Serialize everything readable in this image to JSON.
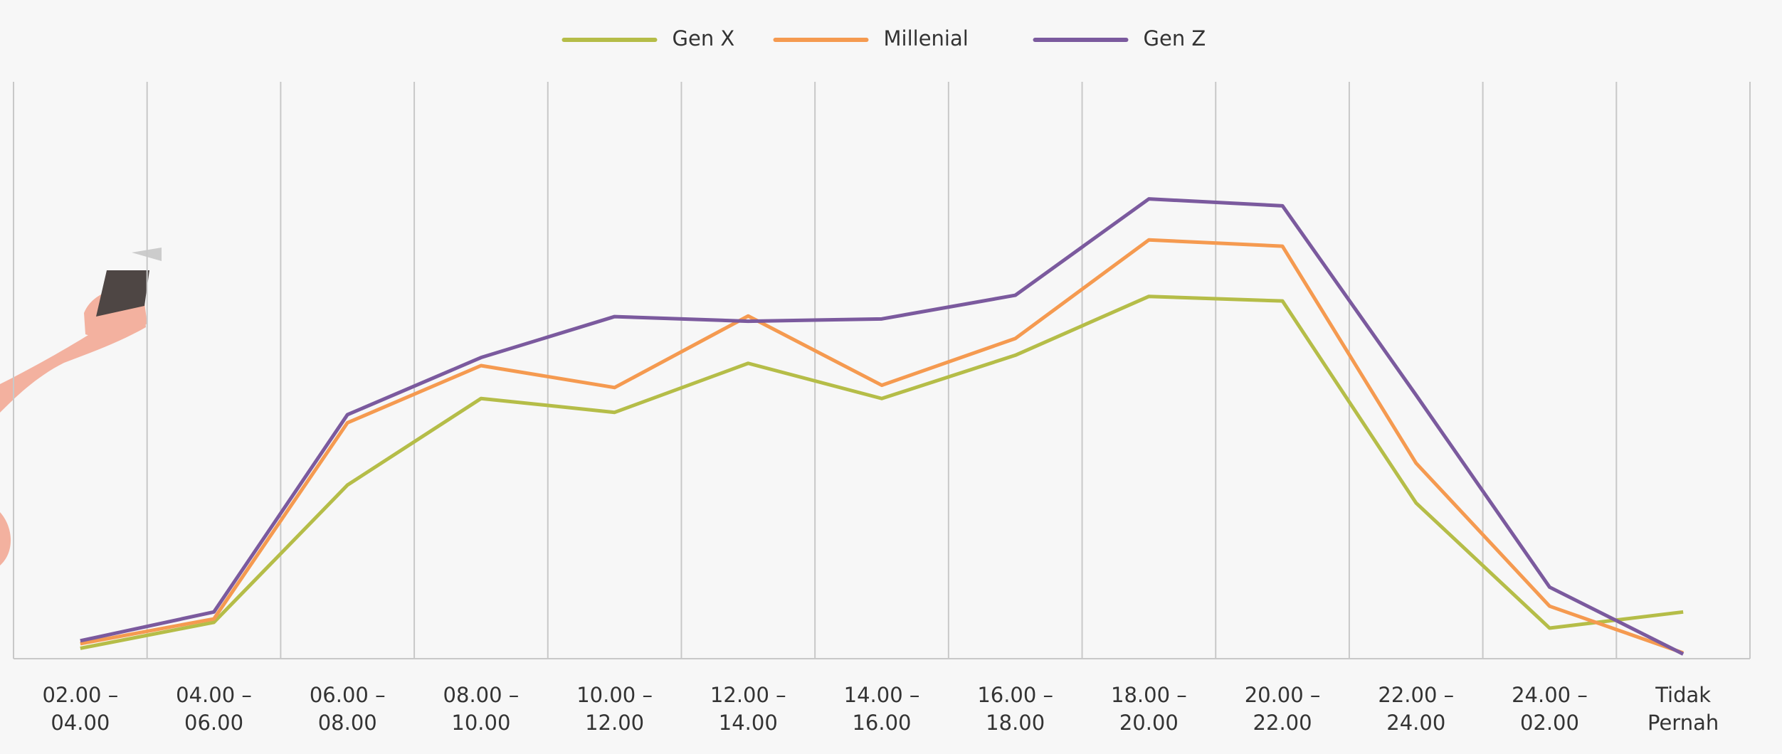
{
  "chart_data": {
    "type": "line",
    "categories": [
      "02.00 –\n04.00",
      "04.00 –\n06.00",
      "06.00 –\n08.00",
      "08.00 –\n10.00",
      "10.00 –\n12.00",
      "12.00 –\n14.00",
      "14.00 –\n16.00",
      "16.00 –\n18.00",
      "18.00 –\n20.00",
      "20.00 –\n22.00",
      "22.00 –\n24.00",
      "24.00 –\n02.00",
      "Tidak\nPernah"
    ],
    "series": [
      {
        "name": "Gen X",
        "color": "#b5bd48",
        "values": [
          1.8,
          6.3,
          30.1,
          45.1,
          42.7,
          51.2,
          45.1,
          52.6,
          62.8,
          62.0,
          27.0,
          5.3,
          8.1
        ]
      },
      {
        "name": "Millenial",
        "color": "#f59a50",
        "values": [
          2.6,
          6.9,
          40.9,
          50.8,
          47.0,
          59.4,
          47.4,
          55.5,
          72.6,
          71.5,
          33.9,
          9.1,
          1.0
        ]
      },
      {
        "name": "Gen Z",
        "color": "#7b5a9e",
        "values": [
          3.1,
          8.1,
          42.3,
          52.2,
          59.3,
          58.5,
          58.9,
          63.0,
          79.7,
          78.5,
          45.7,
          12.4,
          0.8
        ]
      }
    ],
    "ylim": [
      0,
      100
    ],
    "grid": true,
    "legend": "top"
  }
}
